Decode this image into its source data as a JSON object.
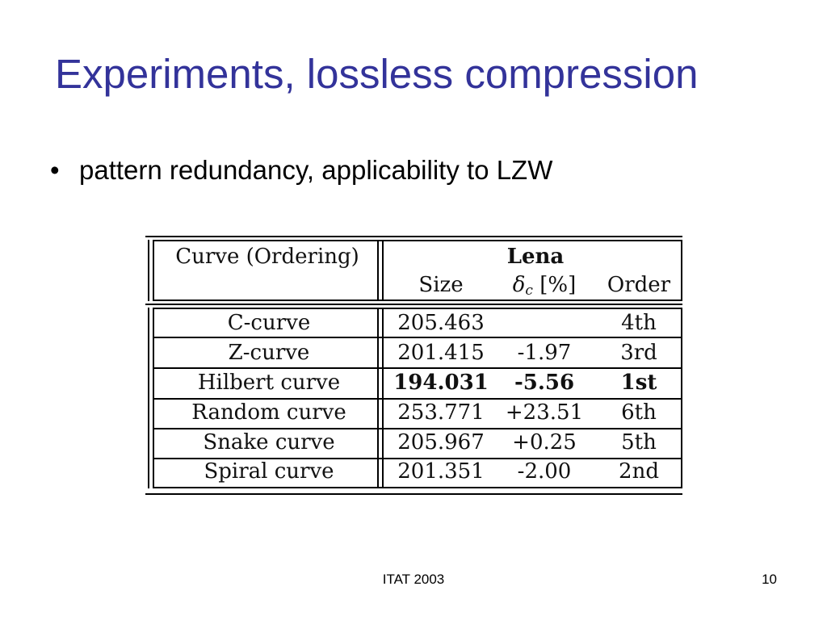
{
  "slide": {
    "title": "Experiments, lossless compression",
    "bullets": [
      {
        "marker": "•",
        "text": "pattern redundancy, applicability to LZW"
      }
    ]
  },
  "table": {
    "header": {
      "curve": "Curve (Ordering)",
      "group": "Lena",
      "size": "Size",
      "delta_symbol": "δ",
      "delta_sub": "c",
      "delta_unit": " [%]",
      "order": "Order"
    },
    "rows": [
      {
        "curve": "C-curve",
        "size": "205.463",
        "delta": "",
        "order": "4th",
        "bold": false
      },
      {
        "curve": "Z-curve",
        "size": "201.415",
        "delta": "-1.97",
        "order": "3rd",
        "bold": false
      },
      {
        "curve": "Hilbert curve",
        "size": "194.031",
        "delta": "-5.56",
        "order": "1st",
        "bold": true
      },
      {
        "curve": "Random curve",
        "size": "253.771",
        "delta": "+23.51",
        "order": "6th",
        "bold": false
      },
      {
        "curve": "Snake curve",
        "size": "205.967",
        "delta": "+0.25",
        "order": "5th",
        "bold": false
      },
      {
        "curve": "Spiral curve",
        "size": "201.351",
        "delta": "-2.00",
        "order": "2nd",
        "bold": false
      }
    ]
  },
  "footer": {
    "center": "ITAT 2003",
    "page": "10"
  }
}
